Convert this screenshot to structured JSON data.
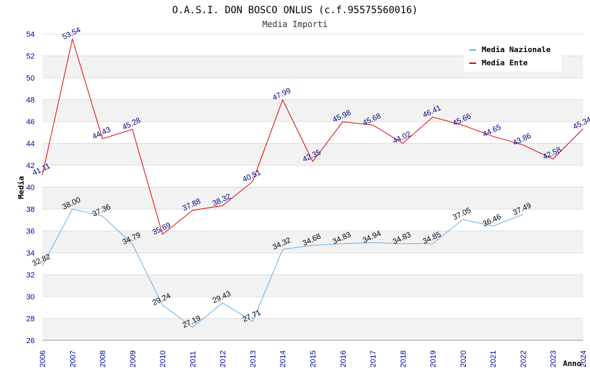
{
  "chart_data": {
    "type": "line",
    "title": "O.A.S.I. DON BOSCO ONLUS (c.f.95575560016)",
    "subtitle": "Media Importi",
    "xlabel": "Anno",
    "ylabel": "Media",
    "ylim": [
      26,
      54
    ],
    "yticks": [
      "26",
      "28",
      "30",
      "32",
      "34",
      "36",
      "38",
      "40",
      "42",
      "44",
      "46",
      "48",
      "50",
      "52",
      "54"
    ],
    "categories": [
      "2006",
      "2007",
      "2008",
      "2009",
      "2010",
      "2011",
      "2012",
      "2013",
      "2014",
      "2015",
      "2016",
      "2017",
      "2018",
      "2019",
      "2020",
      "2021",
      "2022",
      "2023",
      "2024"
    ],
    "grid": true,
    "legend_position": "top-right",
    "series": [
      {
        "name": "Media Nazionale",
        "color": "#6aaee8",
        "values": [
          32.82,
          38.0,
          37.36,
          34.79,
          29.24,
          27.19,
          29.43,
          27.71,
          34.32,
          34.68,
          34.83,
          34.94,
          34.83,
          34.85,
          37.05,
          36.46,
          37.49,
          null,
          null
        ],
        "labels": [
          "32.82",
          "38.00",
          "37.36",
          "34.79",
          "29.24",
          "27.19",
          "29.43",
          "27.71",
          "34.32",
          "34.68",
          "34.83",
          "34.94",
          "34.83",
          "34.85",
          "37.05",
          "36.46",
          "37.49",
          "",
          ""
        ]
      },
      {
        "name": "Media Ente",
        "color": "#e00000",
        "values": [
          41.11,
          53.54,
          44.43,
          45.28,
          35.69,
          37.88,
          38.32,
          40.51,
          47.99,
          42.35,
          45.98,
          45.68,
          44.02,
          46.41,
          45.66,
          44.65,
          43.86,
          42.58,
          45.34
        ],
        "labels": [
          "41.11",
          "53.54",
          "44.43",
          "45.28",
          "35.69",
          "37.88",
          "38.32",
          "40.51",
          "47.99",
          "42.35",
          "45.98",
          "45.68",
          "44.02",
          "46.41",
          "45.66",
          "44.65",
          "43.86",
          "42.58",
          "45.34"
        ]
      }
    ]
  }
}
